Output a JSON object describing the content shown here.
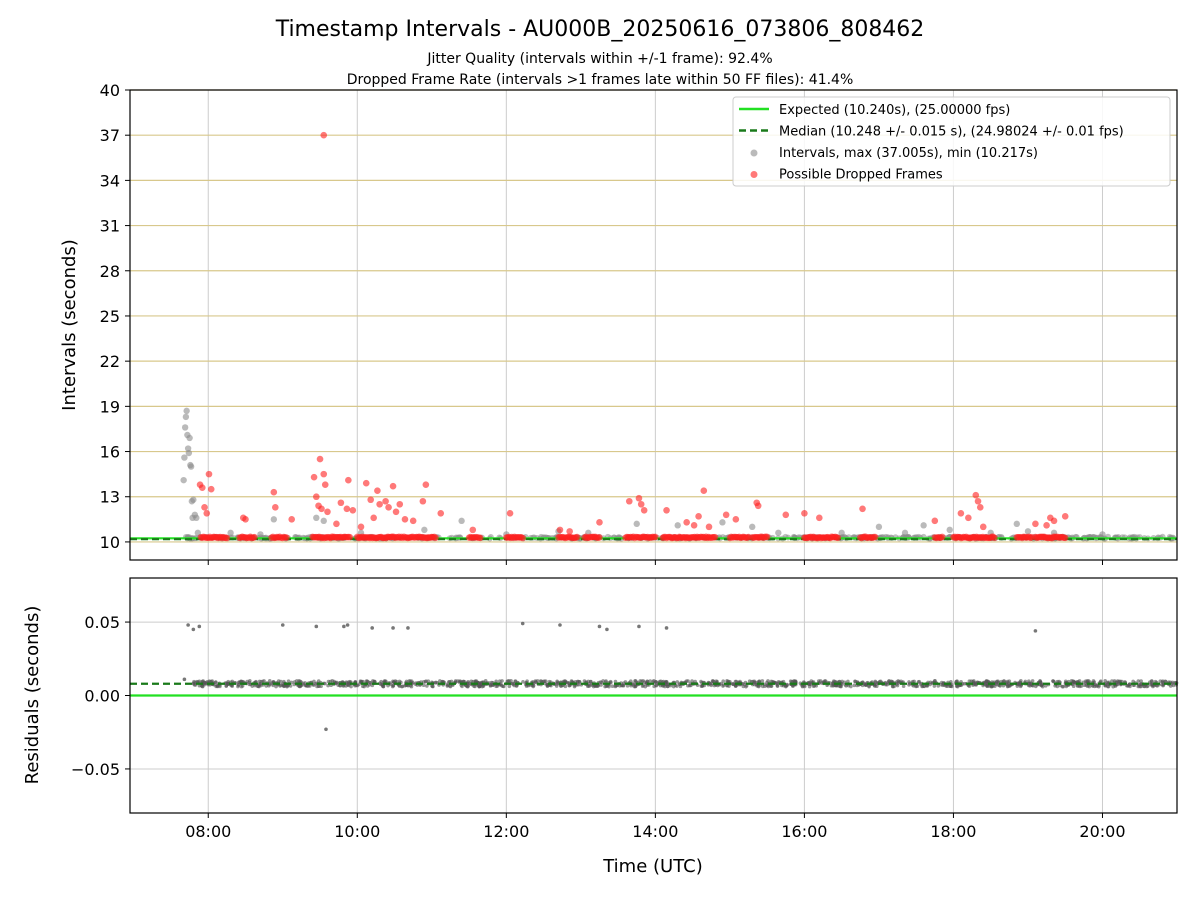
{
  "title": "Timestamp Intervals - AU000B_20250616_073806_808462",
  "subtitle_lines": [
    "Jitter Quality (intervals within +/-1 frame): 92.4%",
    "Dropped Frame Rate (intervals >1 frames late within 50 FF files): 41.4%"
  ],
  "colors": {
    "expected": "#22e022",
    "median": "#1a7a1a",
    "intervals": "#8c8c8c",
    "dropped": "#ff2020",
    "hgrid_top": "#d8c88c",
    "grid": "#cccccc",
    "residual_points": "#555555"
  },
  "chart_data": [
    {
      "type": "scatter",
      "id": "intervals",
      "ylabel": "Intervals (seconds)",
      "xlabel": "",
      "xlim_hours": [
        6.95,
        21.0
      ],
      "ylim": [
        8.8,
        40
      ],
      "yticks": [
        10,
        13,
        16,
        19,
        22,
        25,
        28,
        31,
        34,
        37,
        40
      ],
      "xticks": [
        {
          "value": 8,
          "label": "08:00"
        },
        {
          "value": 10,
          "label": "10:00"
        },
        {
          "value": 12,
          "label": "12:00"
        },
        {
          "value": 14,
          "label": "14:00"
        },
        {
          "value": 16,
          "label": "16:00"
        },
        {
          "value": 18,
          "label": "18:00"
        },
        {
          "value": 20,
          "label": "20:00"
        }
      ],
      "grid": true,
      "legend_position": "top-right",
      "expected_value": 10.24,
      "median_value": 10.248,
      "legend": [
        {
          "label": "Expected (10.240s), (25.00000 fps)",
          "kind": "solid-line",
          "color": "#22e022"
        },
        {
          "label": "Median (10.248 +/- 0.015 s), (24.98024 +/- 0.01 fps)",
          "kind": "dashed-line",
          "color": "#1a7a1a"
        },
        {
          "label": "Intervals, max (37.005s), min (10.217s)",
          "kind": "dot",
          "color": "#8c8c8c"
        },
        {
          "label": "Possible Dropped Frames",
          "kind": "dot",
          "color": "#ff2020"
        }
      ],
      "series": [
        {
          "name": "Intervals, max (37.005s), min (10.217s)",
          "color": "#8c8c8c",
          "x": [
            7.67,
            7.68,
            7.69,
            7.7,
            7.71,
            7.72,
            7.73,
            7.74,
            7.75,
            7.76,
            7.77,
            7.78,
            7.79,
            7.8,
            7.82,
            7.84,
            7.86,
            8.3,
            8.7,
            8.88,
            9.45,
            9.55,
            10.05,
            10.9,
            11.4,
            12.0,
            12.7,
            13.1,
            13.75,
            14.3,
            14.9,
            15.3,
            15.65,
            16.5,
            17.0,
            17.35,
            17.6,
            17.95,
            18.5,
            18.85,
            19.0,
            19.35,
            20.0
          ],
          "y": [
            14.1,
            15.6,
            17.6,
            18.3,
            18.7,
            17.1,
            16.2,
            15.9,
            16.9,
            15.1,
            15.0,
            12.7,
            11.6,
            12.8,
            11.8,
            11.6,
            10.6,
            10.6,
            10.5,
            11.5,
            11.6,
            11.4,
            10.6,
            10.8,
            11.4,
            10.5,
            10.7,
            10.6,
            11.2,
            11.1,
            11.3,
            11.0,
            10.6,
            10.6,
            11.0,
            10.6,
            11.1,
            10.8,
            10.6,
            11.2,
            10.7,
            10.6,
            10.5
          ]
        },
        {
          "name": "Possible Dropped Frames",
          "color": "#ff2020",
          "x": [
            7.89,
            7.92,
            7.95,
            7.98,
            8.01,
            8.04,
            8.47,
            8.5,
            8.88,
            8.9,
            9.12,
            9.42,
            9.45,
            9.48,
            9.5,
            9.52,
            9.55,
            9.57,
            9.6,
            9.72,
            9.78,
            9.86,
            9.88,
            9.94,
            10.05,
            10.12,
            10.18,
            10.22,
            10.27,
            10.3,
            10.38,
            10.42,
            10.48,
            10.52,
            10.57,
            10.64,
            10.75,
            10.88,
            10.92,
            11.12,
            11.55,
            12.05,
            12.72,
            12.85,
            13.25,
            13.65,
            13.78,
            13.81,
            13.85,
            14.15,
            14.42,
            14.52,
            14.58,
            14.65,
            14.72,
            14.95,
            15.08,
            15.36,
            15.38,
            15.75,
            16.0,
            16.2,
            16.78,
            17.75,
            18.1,
            18.2,
            18.3,
            18.33,
            18.36,
            18.4,
            19.1,
            19.25,
            19.3,
            19.35,
            19.5
          ],
          "y": [
            13.8,
            13.6,
            12.3,
            11.9,
            14.5,
            13.5,
            11.6,
            11.5,
            13.3,
            12.3,
            11.5,
            14.3,
            13.0,
            12.4,
            15.5,
            12.2,
            14.5,
            13.8,
            12.0,
            11.2,
            12.6,
            12.2,
            14.1,
            12.1,
            11.0,
            13.9,
            12.8,
            11.6,
            13.4,
            12.5,
            12.7,
            12.3,
            13.7,
            12.0,
            12.5,
            11.5,
            11.4,
            12.7,
            13.8,
            11.9,
            10.8,
            11.9,
            10.8,
            10.7,
            11.3,
            12.7,
            12.9,
            12.5,
            12.1,
            12.1,
            11.3,
            11.1,
            11.7,
            13.4,
            11.0,
            11.8,
            11.5,
            12.6,
            12.4,
            11.8,
            11.9,
            11.6,
            12.2,
            11.4,
            11.9,
            11.6,
            13.1,
            12.7,
            12.3,
            11.0,
            11.2,
            11.1,
            11.6,
            11.4,
            11.7
          ]
        },
        {
          "name": "Possible Dropped Frames (outlier)",
          "color": "#ff2020",
          "x": [
            9.55
          ],
          "y": [
            37.0
          ]
        }
      ],
      "dropped_baseline_clusters": [
        [
          7.9,
          8.25
        ],
        [
          8.42,
          8.62
        ],
        [
          8.85,
          9.05
        ],
        [
          9.4,
          9.9
        ],
        [
          10.0,
          11.05
        ],
        [
          11.5,
          11.65
        ],
        [
          12.0,
          12.22
        ],
        [
          12.7,
          12.95
        ],
        [
          13.05,
          13.25
        ],
        [
          13.6,
          14.0
        ],
        [
          14.1,
          14.8
        ],
        [
          15.0,
          15.25
        ],
        [
          15.3,
          15.5
        ],
        [
          16.0,
          16.45
        ],
        [
          16.75,
          16.95
        ],
        [
          17.75,
          17.85
        ],
        [
          18.0,
          18.55
        ],
        [
          18.85,
          19.05
        ],
        [
          19.1,
          19.5
        ]
      ]
    },
    {
      "type": "scatter",
      "id": "residuals",
      "ylabel": "Residuals (seconds)",
      "xlabel": "Time (UTC)",
      "xlim_hours": [
        6.95,
        21.0
      ],
      "ylim": [
        -0.08,
        0.08
      ],
      "yticks": [
        {
          "value": -0.05,
          "label": "−0.05"
        },
        {
          "value": 0.0,
          "label": "0.00"
        },
        {
          "value": 0.05,
          "label": "0.05"
        }
      ],
      "xticks": [
        {
          "value": 8,
          "label": "08:00"
        },
        {
          "value": 10,
          "label": "10:00"
        },
        {
          "value": 12,
          "label": "12:00"
        },
        {
          "value": 14,
          "label": "14:00"
        },
        {
          "value": 16,
          "label": "16:00"
        },
        {
          "value": 18,
          "label": "18:00"
        },
        {
          "value": 20,
          "label": "20:00"
        }
      ],
      "grid": true,
      "expected_value": 0.0,
      "median_value": 0.008,
      "band_center": 0.008,
      "band_spread": 0.002,
      "outliers": {
        "x": [
          7.73,
          7.8,
          7.88,
          9.0,
          9.45,
          9.82,
          9.87,
          10.2,
          10.48,
          10.68,
          12.22,
          12.72,
          13.25,
          13.35,
          13.78,
          14.15,
          19.1,
          9.58,
          7.68
        ],
        "y": [
          0.048,
          0.045,
          0.047,
          0.048,
          0.047,
          0.047,
          0.048,
          0.046,
          0.046,
          0.046,
          0.049,
          0.048,
          0.047,
          0.045,
          0.047,
          0.046,
          0.044,
          -0.023,
          0.011
        ]
      }
    }
  ]
}
